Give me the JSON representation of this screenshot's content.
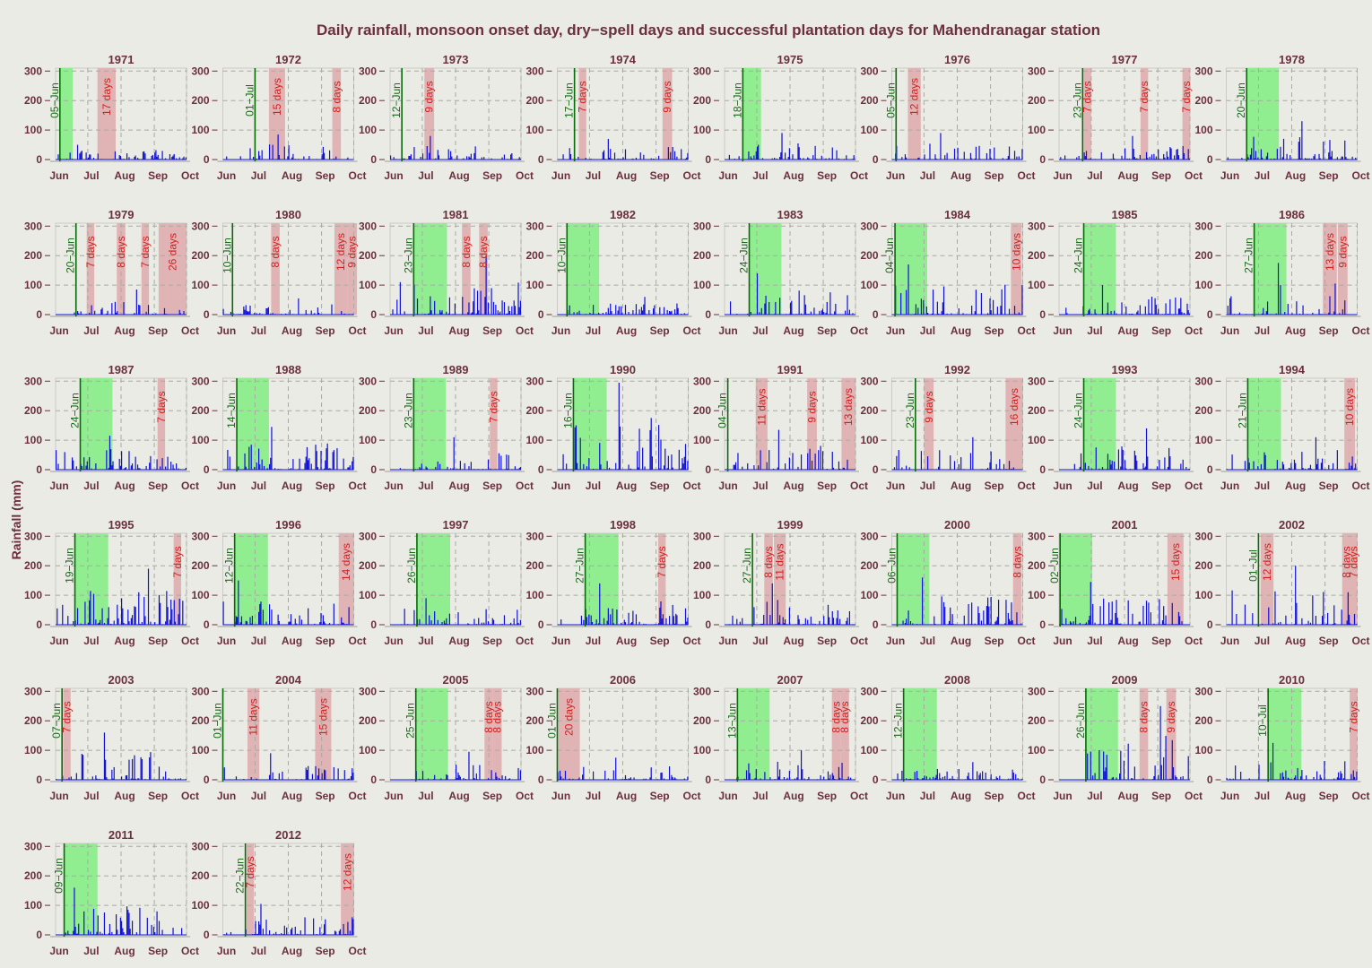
{
  "chart_data": {
    "type": "bar",
    "title": "Daily rainfall, monsoon onset day, dry−spell days and successful plantation days for Mahendranagar station",
    "ylabel": "Rainfall (mm)",
    "xlabel": "",
    "x_ticks": [
      "Jun",
      "Jul",
      "Aug",
      "Sep",
      "Oct"
    ],
    "y_ticks": [
      0,
      100,
      200,
      300
    ],
    "ylim": [
      0,
      310
    ],
    "xlim_days": [
      0,
      122
    ],
    "grid": true,
    "colors": {
      "rain": "#1010d8",
      "onset_line": "#0a6a0a",
      "plantation": "#90ee90",
      "dry_spell": "#e0b4b4",
      "onset_text": "#1a6a1a",
      "dry_text": "#d21f1f"
    },
    "panels": [
      {
        "year": "1971",
        "onset": "05−Jun",
        "onset_day": 4,
        "plant": [
          4,
          16
        ],
        "dry": [
          {
            "start": 39,
            "days": 17,
            "label": "17 days"
          }
        ],
        "peak": 50,
        "wet": 0.55,
        "seed": 11
      },
      {
        "year": "1972",
        "onset": "01−Jul",
        "onset_day": 30,
        "plant": null,
        "dry": [
          {
            "start": 43,
            "days": 15,
            "label": "15 days"
          },
          {
            "start": 102,
            "days": 8,
            "label": "8 days"
          }
        ],
        "peak": 85,
        "wet": 0.3,
        "seed": 12
      },
      {
        "year": "1973",
        "onset": "12−Jun",
        "onset_day": 11,
        "plant": null,
        "dry": [
          {
            "start": 32,
            "days": 9,
            "label": "9 days"
          }
        ],
        "peak": 80,
        "wet": 0.35,
        "seed": 13
      },
      {
        "year": "1974",
        "onset": "17−Jun",
        "onset_day": 16,
        "plant": null,
        "dry": [
          {
            "start": 20,
            "days": 7,
            "label": "7 days"
          },
          {
            "start": 98,
            "days": 9,
            "label": "9 days"
          }
        ],
        "peak": 70,
        "wet": 0.35,
        "seed": 14
      },
      {
        "year": "1975",
        "onset": "18−Jun",
        "onset_day": 17,
        "plant": [
          17,
          34
        ],
        "dry": [],
        "peak": 90,
        "wet": 0.4,
        "seed": 15
      },
      {
        "year": "1976",
        "onset": "05−Jun",
        "onset_day": 4,
        "plant": null,
        "dry": [
          {
            "start": 15,
            "days": 12,
            "label": "12 days"
          }
        ],
        "peak": 90,
        "wet": 0.35,
        "seed": 16
      },
      {
        "year": "1977",
        "onset": "23−Jun",
        "onset_day": 22,
        "plant": null,
        "dry": [
          {
            "start": 23,
            "days": 7,
            "label": "7 days"
          },
          {
            "start": 76,
            "days": 7,
            "label": "7 days"
          },
          {
            "start": 115,
            "days": 7,
            "label": "7 days"
          }
        ],
        "peak": 80,
        "wet": 0.45,
        "seed": 17
      },
      {
        "year": "1978",
        "onset": "20−Jun",
        "onset_day": 19,
        "plant": [
          19,
          49
        ],
        "dry": [],
        "peak": 130,
        "wet": 0.5,
        "seed": 18
      },
      {
        "year": "1979",
        "onset": "20−Jun",
        "onset_day": 19,
        "plant": null,
        "dry": [
          {
            "start": 29,
            "days": 7,
            "label": "7 days"
          },
          {
            "start": 57,
            "days": 8,
            "label": "8 days"
          },
          {
            "start": 80,
            "days": 7,
            "label": "7 days"
          },
          {
            "start": 96,
            "days": 26,
            "label": "26 days"
          }
        ],
        "peak": 85,
        "wet": 0.4,
        "seed": 19
      },
      {
        "year": "1980",
        "onset": "10−Jun",
        "onset_day": 9,
        "plant": null,
        "dry": [
          {
            "start": 45,
            "days": 8,
            "label": "8 days"
          },
          {
            "start": 104,
            "days": 12,
            "label": "12 days"
          },
          {
            "start": 116,
            "days": 9,
            "label": "9 days"
          }
        ],
        "peak": 55,
        "wet": 0.3,
        "seed": 20
      },
      {
        "year": "1981",
        "onset": "23−Jun",
        "onset_day": 22,
        "plant": [
          22,
          53
        ],
        "dry": [
          {
            "start": 67,
            "days": 8,
            "label": "8 days"
          },
          {
            "start": 83,
            "days": 8,
            "label": "8 days"
          }
        ],
        "peak": 200,
        "wet": 0.45,
        "seed": 21
      },
      {
        "year": "1982",
        "onset": "10−Jun",
        "onset_day": 9,
        "plant": [
          9,
          39
        ],
        "dry": [],
        "peak": 60,
        "wet": 0.55,
        "seed": 22
      },
      {
        "year": "1983",
        "onset": "24−Jun",
        "onset_day": 23,
        "plant": [
          23,
          53
        ],
        "dry": [],
        "peak": 140,
        "wet": 0.45,
        "seed": 23
      },
      {
        "year": "1984",
        "onset": "04−Jun",
        "onset_day": 3,
        "plant": [
          3,
          33
        ],
        "dry": [
          {
            "start": 111,
            "days": 10,
            "label": "10 days"
          }
        ],
        "peak": 170,
        "wet": 0.4,
        "seed": 24
      },
      {
        "year": "1985",
        "onset": "24−Jun",
        "onset_day": 23,
        "plant": [
          23,
          53
        ],
        "dry": [],
        "peak": 100,
        "wet": 0.45,
        "seed": 25
      },
      {
        "year": "1986",
        "onset": "27−Jun",
        "onset_day": 26,
        "plant": [
          26,
          56
        ],
        "dry": [
          {
            "start": 90,
            "days": 13,
            "label": "13 days"
          },
          {
            "start": 104,
            "days": 9,
            "label": "9 days"
          }
        ],
        "peak": 175,
        "wet": 0.35,
        "seed": 26
      },
      {
        "year": "1987",
        "onset": "24−Jun",
        "onset_day": 23,
        "plant": [
          23,
          53
        ],
        "dry": [
          {
            "start": 95,
            "days": 7,
            "label": "7 days"
          }
        ],
        "peak": 115,
        "wet": 0.45,
        "seed": 27
      },
      {
        "year": "1988",
        "onset": "14−Jun",
        "onset_day": 13,
        "plant": [
          13,
          43
        ],
        "dry": [],
        "peak": 145,
        "wet": 0.5,
        "seed": 28
      },
      {
        "year": "1989",
        "onset": "23−Jun",
        "onset_day": 22,
        "plant": [
          22,
          52
        ],
        "dry": [
          {
            "start": 93,
            "days": 7,
            "label": "7 days"
          }
        ],
        "peak": 110,
        "wet": 0.45,
        "seed": 29
      },
      {
        "year": "1990",
        "onset": "16−Jun",
        "onset_day": 15,
        "plant": [
          15,
          46
        ],
        "dry": [],
        "peak": 295,
        "wet": 0.45,
        "seed": 30
      },
      {
        "year": "1991",
        "onset": "04−Jun",
        "onset_day": 3,
        "plant": null,
        "dry": [
          {
            "start": 29,
            "days": 11,
            "label": "11 days"
          },
          {
            "start": 77,
            "days": 9,
            "label": "9 days"
          },
          {
            "start": 109,
            "days": 13,
            "label": "13 days"
          }
        ],
        "peak": 135,
        "wet": 0.3,
        "seed": 31
      },
      {
        "year": "1992",
        "onset": "23−Jun",
        "onset_day": 22,
        "plant": null,
        "dry": [
          {
            "start": 30,
            "days": 9,
            "label": "9 days"
          },
          {
            "start": 106,
            "days": 16,
            "label": "16 days"
          }
        ],
        "peak": 110,
        "wet": 0.35,
        "seed": 32
      },
      {
        "year": "1993",
        "onset": "24−Jun",
        "onset_day": 23,
        "plant": [
          23,
          53
        ],
        "dry": [],
        "peak": 140,
        "wet": 0.45,
        "seed": 33
      },
      {
        "year": "1994",
        "onset": "21−Jun",
        "onset_day": 20,
        "plant": [
          20,
          51
        ],
        "dry": [
          {
            "start": 110,
            "days": 10,
            "label": "10 days"
          }
        ],
        "peak": 110,
        "wet": 0.45,
        "seed": 34
      },
      {
        "year": "1995",
        "onset": "19−Jun",
        "onset_day": 18,
        "plant": [
          18,
          49
        ],
        "dry": [
          {
            "start": 110,
            "days": 7,
            "label": "7 days"
          }
        ],
        "peak": 190,
        "wet": 0.45,
        "seed": 35
      },
      {
        "year": "1996",
        "onset": "12−Jun",
        "onset_day": 11,
        "plant": [
          11,
          42
        ],
        "dry": [
          {
            "start": 108,
            "days": 14,
            "label": "14 days"
          }
        ],
        "peak": 150,
        "wet": 0.4,
        "seed": 36
      },
      {
        "year": "1997",
        "onset": "26−Jun",
        "onset_day": 25,
        "plant": [
          25,
          56
        ],
        "dry": [],
        "peak": 90,
        "wet": 0.45,
        "seed": 37
      },
      {
        "year": "1998",
        "onset": "27−Jun",
        "onset_day": 26,
        "plant": [
          26,
          57
        ],
        "dry": [
          {
            "start": 94,
            "days": 7,
            "label": "7 days"
          }
        ],
        "peak": 140,
        "wet": 0.45,
        "seed": 38
      },
      {
        "year": "1999",
        "onset": "27−Jun",
        "onset_day": 26,
        "plant": null,
        "dry": [
          {
            "start": 37,
            "days": 8,
            "label": "8 days"
          },
          {
            "start": 46,
            "days": 11,
            "label": "11 days"
          }
        ],
        "peak": 140,
        "wet": 0.5,
        "seed": 39
      },
      {
        "year": "2000",
        "onset": "06−Jun",
        "onset_day": 5,
        "plant": [
          5,
          35
        ],
        "dry": [
          {
            "start": 113,
            "days": 8,
            "label": "8 days"
          }
        ],
        "peak": 160,
        "wet": 0.4,
        "seed": 40
      },
      {
        "year": "2001",
        "onset": "02−Jun",
        "onset_day": 1,
        "plant": [
          1,
          31
        ],
        "dry": [
          {
            "start": 101,
            "days": 15,
            "label": "15 days"
          }
        ],
        "peak": 145,
        "wet": 0.35,
        "seed": 41
      },
      {
        "year": "2002",
        "onset": "01−Jul",
        "onset_day": 30,
        "plant": null,
        "dry": [
          {
            "start": 32,
            "days": 12,
            "label": "12 days"
          },
          {
            "start": 108,
            "days": 8,
            "label": "8 days"
          },
          {
            "start": 115,
            "days": 7,
            "label": "7 days"
          }
        ],
        "peak": 200,
        "wet": 0.3,
        "seed": 42
      },
      {
        "year": "2003",
        "onset": "07−Jun",
        "onset_day": 6,
        "plant": null,
        "dry": [
          {
            "start": 7,
            "days": 7,
            "label": "7 days"
          }
        ],
        "peak": 160,
        "wet": 0.45,
        "seed": 43
      },
      {
        "year": "2004",
        "onset": "01−Jun",
        "onset_day": 0,
        "plant": null,
        "dry": [
          {
            "start": 23,
            "days": 11,
            "label": "11 days"
          },
          {
            "start": 86,
            "days": 15,
            "label": "15 days"
          }
        ],
        "peak": 90,
        "wet": 0.3,
        "seed": 44
      },
      {
        "year": "2005",
        "onset": "25−Jun",
        "onset_day": 24,
        "plant": [
          24,
          54
        ],
        "dry": [
          {
            "start": 88,
            "days": 8,
            "label": "8 days"
          },
          {
            "start": 96,
            "days": 8,
            "label": "8 days"
          }
        ],
        "peak": 95,
        "wet": 0.4,
        "seed": 45
      },
      {
        "year": "2006",
        "onset": "01−Jun",
        "onset_day": 0,
        "plant": null,
        "dry": [
          {
            "start": 1,
            "days": 20,
            "label": "20 days"
          }
        ],
        "peak": 75,
        "wet": 0.35,
        "seed": 46
      },
      {
        "year": "2007",
        "onset": "13−Jun",
        "onset_day": 12,
        "plant": [
          12,
          42
        ],
        "dry": [
          {
            "start": 100,
            "days": 8,
            "label": "8 days"
          },
          {
            "start": 108,
            "days": 8,
            "label": "8 days"
          }
        ],
        "peak": 100,
        "wet": 0.45,
        "seed": 47
      },
      {
        "year": "2008",
        "onset": "12−Jun",
        "onset_day": 11,
        "plant": [
          11,
          42
        ],
        "dry": [],
        "peak": 60,
        "wet": 0.6,
        "seed": 48
      },
      {
        "year": "2009",
        "onset": "26−Jun",
        "onset_day": 25,
        "plant": [
          25,
          55
        ],
        "dry": [
          {
            "start": 75,
            "days": 8,
            "label": "8 days"
          },
          {
            "start": 100,
            "days": 9,
            "label": "9 days"
          }
        ],
        "peak": 250,
        "wet": 0.45,
        "seed": 49
      },
      {
        "year": "2010",
        "onset": "10−Jul",
        "onset_day": 39,
        "plant": [
          39,
          70
        ],
        "dry": [
          {
            "start": 115,
            "days": 7,
            "label": "7 days"
          }
        ],
        "peak": 125,
        "wet": 0.45,
        "seed": 50
      },
      {
        "year": "2011",
        "onset": "09−Jun",
        "onset_day": 8,
        "plant": [
          8,
          39
        ],
        "dry": [],
        "peak": 160,
        "wet": 0.45,
        "seed": 51
      },
      {
        "year": "2012",
        "onset": "22−Jun",
        "onset_day": 21,
        "plant": null,
        "dry": [
          {
            "start": 22,
            "days": 7,
            "label": "7 days"
          },
          {
            "start": 110,
            "days": 12,
            "label": "12 days"
          }
        ],
        "peak": 105,
        "wet": 0.4,
        "seed": 52
      }
    ]
  }
}
